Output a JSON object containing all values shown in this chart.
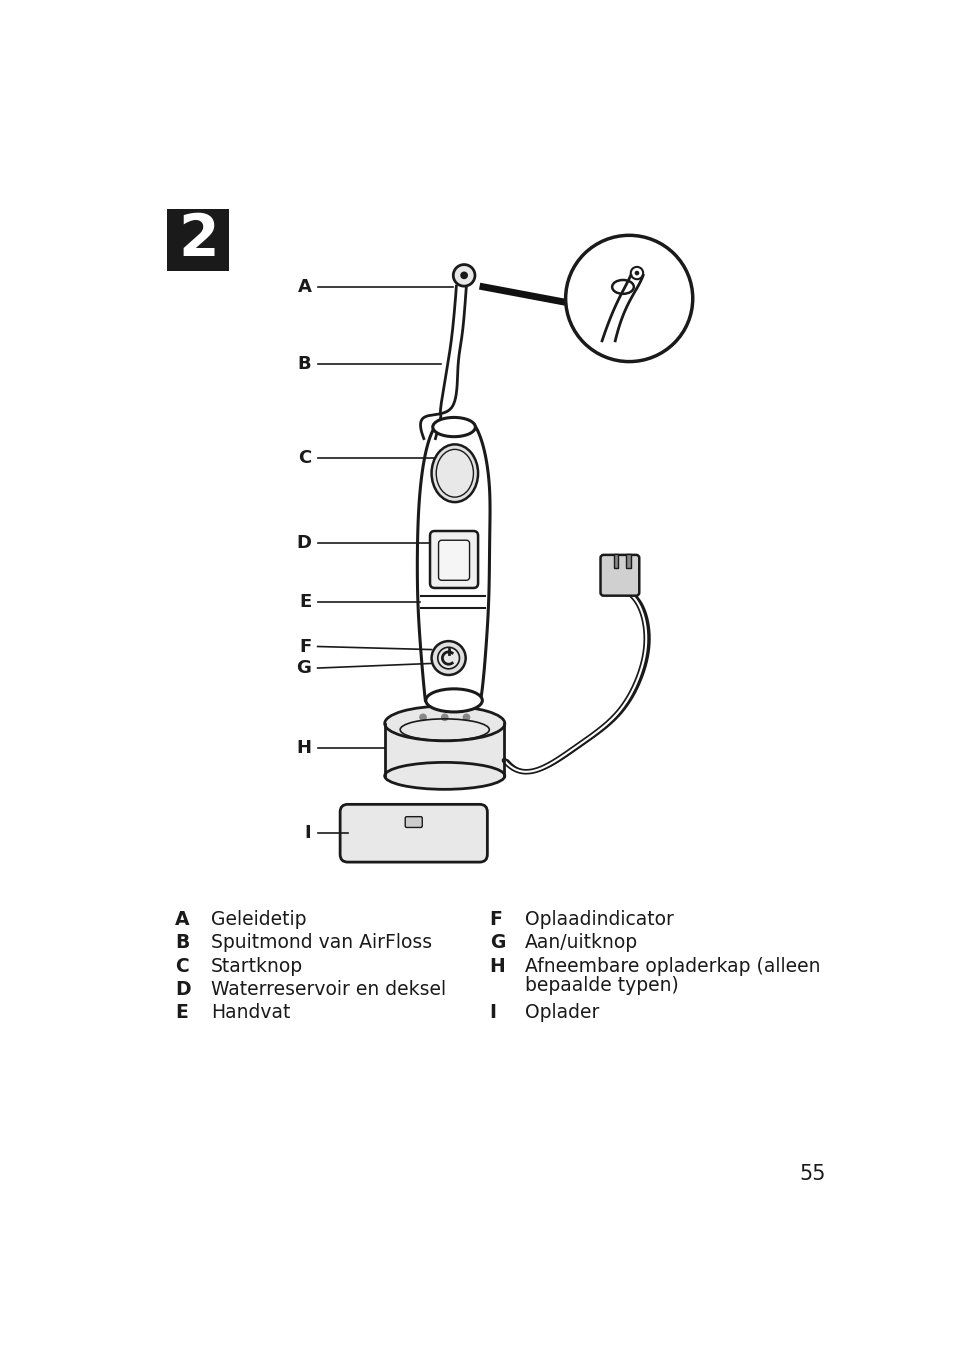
{
  "background_color": "#ffffff",
  "page_number": "55",
  "step_number": "2",
  "labels_left": [
    {
      "letter": "A",
      "description": "Geleidetip"
    },
    {
      "letter": "B",
      "description": "Spuitmond van AirFloss"
    },
    {
      "letter": "C",
      "description": "Startknop"
    },
    {
      "letter": "D",
      "description": "Waterreservoir en deksel"
    },
    {
      "letter": "E",
      "description": "Handvat"
    }
  ],
  "labels_right": [
    {
      "letter": "F",
      "description": "Oplaadindicator"
    },
    {
      "letter": "G",
      "description": "Aan/uitknop"
    },
    {
      "letter": "H",
      "description": "Afneembare opladerkap (alleen\nbepaalde typen)"
    },
    {
      "letter": "I",
      "description": "Oplader"
    }
  ],
  "label_color": "#1a1a1a",
  "box_color": "#1a1a1a",
  "box_text_color": "#ffffff"
}
